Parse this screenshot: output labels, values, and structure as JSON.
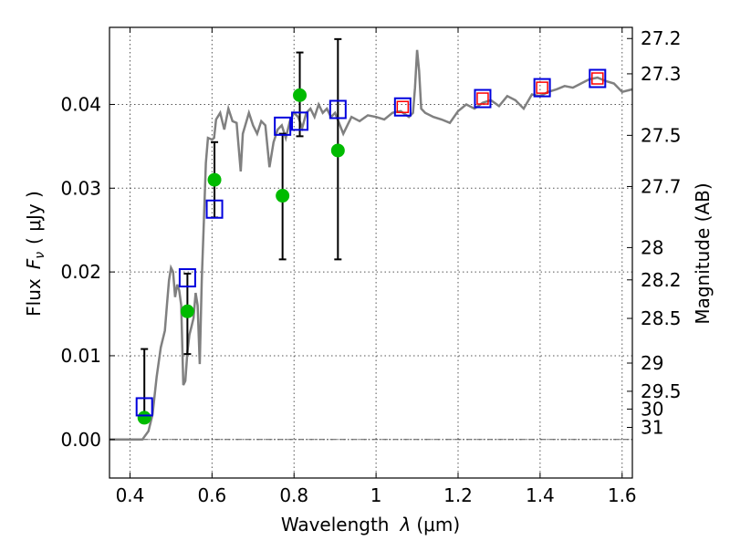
{
  "chart_data": {
    "type": "scatter",
    "xlabel_text": "Wavelength",
    "xlabel_symbol": "λ",
    "xlabel_unit": "(μm)",
    "ylabel_text": "Flux",
    "ylabel_symbol": "F",
    "ylabel_sub": "ν",
    "ylabel_unit": "( μJy )",
    "y2label": "Magnitude (AB)",
    "xlim": [
      0.35,
      1.625
    ],
    "ylim": [
      -0.0046,
      0.0492
    ],
    "xticks": [
      0.4,
      0.6,
      0.8,
      1.0,
      1.2,
      1.4,
      1.6
    ],
    "xtick_labels": [
      "0.4",
      "0.6",
      "0.8",
      "1",
      "1.2",
      "1.4",
      "1.6"
    ],
    "yticks": [
      0.0,
      0.01,
      0.02,
      0.03,
      0.04
    ],
    "ytick_labels": [
      "0.00",
      "0.01",
      "0.02",
      "0.03",
      "0.04"
    ],
    "mag_ticks": [
      "27.2",
      "27.3",
      "27.5",
      "27.7",
      "28",
      "28.2",
      "28.5",
      "29",
      "29.5",
      "30",
      "31"
    ],
    "grid": true,
    "zero_line": true,
    "colors": {
      "template": "#808080",
      "observed": "#00bb00",
      "model_box": "#0000dd",
      "model_red": "#ff0000",
      "errorbar": "#000000"
    },
    "template_spectrum": [
      [
        0.35,
        0
      ],
      [
        0.43,
        0
      ],
      [
        0.445,
        0.001
      ],
      [
        0.455,
        0.003
      ],
      [
        0.465,
        0.0075
      ],
      [
        0.475,
        0.011
      ],
      [
        0.485,
        0.013
      ],
      [
        0.49,
        0.016
      ],
      [
        0.495,
        0.019
      ],
      [
        0.5,
        0.0205
      ],
      [
        0.505,
        0.02
      ],
      [
        0.51,
        0.017
      ],
      [
        0.515,
        0.0185
      ],
      [
        0.52,
        0.0178
      ],
      [
        0.525,
        0.016
      ],
      [
        0.53,
        0.0065
      ],
      [
        0.535,
        0.007
      ],
      [
        0.54,
        0.0105
      ],
      [
        0.545,
        0.0125
      ],
      [
        0.55,
        0.0135
      ],
      [
        0.555,
        0.0145
      ],
      [
        0.56,
        0.0175
      ],
      [
        0.565,
        0.016
      ],
      [
        0.57,
        0.009
      ],
      [
        0.575,
        0.019
      ],
      [
        0.58,
        0.026
      ],
      [
        0.585,
        0.033
      ],
      [
        0.59,
        0.036
      ],
      [
        0.6,
        0.0358
      ],
      [
        0.605,
        0.036
      ],
      [
        0.61,
        0.0382
      ],
      [
        0.62,
        0.039
      ],
      [
        0.63,
        0.037
      ],
      [
        0.64,
        0.0395
      ],
      [
        0.65,
        0.038
      ],
      [
        0.66,
        0.0378
      ],
      [
        0.67,
        0.032
      ],
      [
        0.675,
        0.0365
      ],
      [
        0.69,
        0.039
      ],
      [
        0.7,
        0.0375
      ],
      [
        0.71,
        0.0365
      ],
      [
        0.72,
        0.038
      ],
      [
        0.73,
        0.0375
      ],
      [
        0.74,
        0.0325
      ],
      [
        0.75,
        0.0355
      ],
      [
        0.76,
        0.037
      ],
      [
        0.77,
        0.0375
      ],
      [
        0.78,
        0.036
      ],
      [
        0.79,
        0.038
      ],
      [
        0.8,
        0.039
      ],
      [
        0.81,
        0.0385
      ],
      [
        0.82,
        0.0372
      ],
      [
        0.83,
        0.039
      ],
      [
        0.84,
        0.0395
      ],
      [
        0.85,
        0.0385
      ],
      [
        0.86,
        0.04
      ],
      [
        0.87,
        0.039
      ],
      [
        0.88,
        0.0395
      ],
      [
        0.89,
        0.0385
      ],
      [
        0.9,
        0.039
      ],
      [
        0.92,
        0.0365
      ],
      [
        0.94,
        0.0385
      ],
      [
        0.96,
        0.038
      ],
      [
        0.98,
        0.0387
      ],
      [
        1.0,
        0.0385
      ],
      [
        1.02,
        0.0382
      ],
      [
        1.04,
        0.039
      ],
      [
        1.06,
        0.0392
      ],
      [
        1.08,
        0.0385
      ],
      [
        1.09,
        0.039
      ],
      [
        1.095,
        0.042
      ],
      [
        1.1,
        0.0465
      ],
      [
        1.105,
        0.044
      ],
      [
        1.11,
        0.0395
      ],
      [
        1.12,
        0.039
      ],
      [
        1.14,
        0.0385
      ],
      [
        1.16,
        0.0382
      ],
      [
        1.18,
        0.0378
      ],
      [
        1.2,
        0.0392
      ],
      [
        1.22,
        0.04
      ],
      [
        1.24,
        0.0395
      ],
      [
        1.26,
        0.0402
      ],
      [
        1.28,
        0.0405
      ],
      [
        1.3,
        0.0398
      ],
      [
        1.32,
        0.041
      ],
      [
        1.34,
        0.0405
      ],
      [
        1.36,
        0.0395
      ],
      [
        1.38,
        0.0412
      ],
      [
        1.4,
        0.041
      ],
      [
        1.42,
        0.0415
      ],
      [
        1.44,
        0.0418
      ],
      [
        1.46,
        0.0422
      ],
      [
        1.48,
        0.042
      ],
      [
        1.5,
        0.0425
      ],
      [
        1.52,
        0.043
      ],
      [
        1.54,
        0.0432
      ],
      [
        1.56,
        0.0428
      ],
      [
        1.58,
        0.0425
      ],
      [
        1.6,
        0.0415
      ],
      [
        1.625,
        0.0418
      ]
    ],
    "observed": [
      {
        "x": 0.435,
        "y": 0.0026,
        "yerr_low": 0.0026,
        "yerr_high": 0.0108
      },
      {
        "x": 0.54,
        "y": 0.0153,
        "yerr_low": 0.0102,
        "yerr_high": 0.0198
      },
      {
        "x": 0.606,
        "y": 0.031,
        "yerr_low": 0.0265,
        "yerr_high": 0.0355
      },
      {
        "x": 0.772,
        "y": 0.0291,
        "yerr_low": 0.0215,
        "yerr_high": 0.0365
      },
      {
        "x": 0.814,
        "y": 0.0411,
        "yerr_low": 0.0362,
        "yerr_high": 0.0462
      },
      {
        "x": 0.907,
        "y": 0.0345,
        "yerr_low": 0.0215,
        "yerr_high": 0.0478
      }
    ],
    "model_boxes": [
      {
        "x": 0.435,
        "y": 0.0039,
        "red": false
      },
      {
        "x": 0.54,
        "y": 0.0193,
        "red": false
      },
      {
        "x": 0.606,
        "y": 0.0275,
        "red": false
      },
      {
        "x": 0.772,
        "y": 0.0374,
        "red": false
      },
      {
        "x": 0.814,
        "y": 0.038,
        "red": false
      },
      {
        "x": 0.907,
        "y": 0.0394,
        "red": false
      },
      {
        "x": 1.065,
        "y": 0.0397,
        "red": true
      },
      {
        "x": 1.26,
        "y": 0.0407,
        "red": true
      },
      {
        "x": 1.405,
        "y": 0.042,
        "red": true
      },
      {
        "x": 1.54,
        "y": 0.0431,
        "red": true
      }
    ]
  }
}
